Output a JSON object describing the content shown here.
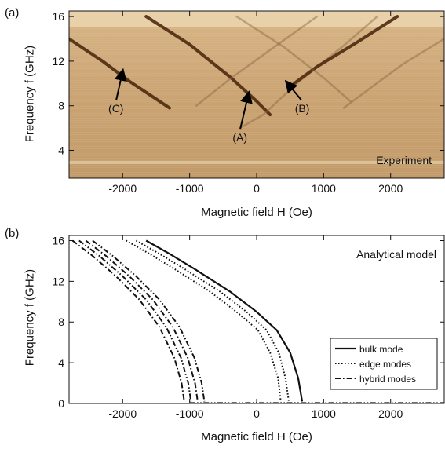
{
  "chart_data": [
    {
      "type": "heatmap",
      "panel_label": "(a)",
      "xlabel": "Magnetic field H (Oe)",
      "ylabel": "Frequency f (GHz)",
      "xlim": [
        -2800,
        2800
      ],
      "ylim": [
        1.5,
        16.5
      ],
      "x_ticks": [
        -2000,
        -1000,
        0,
        1000,
        2000
      ],
      "y_ticks": [
        4,
        8,
        12,
        16
      ],
      "annotation": "Experiment",
      "colormap": {
        "low": "#efd8b2",
        "mid": "#c49a6a",
        "high": "#4e2a10"
      },
      "features": [
        {
          "name": "(A)",
          "points": [
            [
              -1650,
              16.0
            ],
            [
              -1000,
              13.5
            ],
            [
              -400,
              10.6
            ],
            [
              0,
              8.4
            ],
            [
              200,
              7.2
            ]
          ]
        },
        {
          "name": "(A) mirror",
          "points": [
            [
              -250,
              6.0
            ],
            [
              100,
              7.2
            ],
            [
              600,
              10.0
            ],
            [
              1300,
              13.4
            ],
            [
              1800,
              16.0
            ]
          ]
        },
        {
          "name": "(B)",
          "points": [
            [
              560,
              10.0
            ],
            [
              900,
              11.5
            ],
            [
              1500,
              13.7
            ],
            [
              2100,
              16.0
            ]
          ]
        },
        {
          "name": "(C)",
          "points": [
            [
              -2800,
              14.0
            ],
            [
              -2300,
              12.0
            ],
            [
              -1900,
              10.2
            ],
            [
              -1500,
              8.6
            ],
            [
              -1300,
              7.8
            ]
          ]
        },
        {
          "name": "(C) mirror",
          "points": [
            [
              1300,
              7.8
            ],
            [
              1700,
              9.6
            ],
            [
              2200,
              11.8
            ],
            [
              2800,
              14.0
            ]
          ]
        },
        {
          "name": "faint",
          "points": [
            [
              -900,
              8.0
            ],
            [
              -400,
              10.4
            ],
            [
              200,
              13.0
            ],
            [
              900,
              16.0
            ]
          ]
        },
        {
          "name": "faint mirror",
          "points": [
            [
              -300,
              16.0
            ],
            [
              400,
              13.3
            ],
            [
              1000,
              10.5
            ],
            [
              1400,
              8.4
            ]
          ]
        }
      ],
      "annotations": [
        {
          "text": "(A)",
          "label_at": [
            -250,
            4.8
          ],
          "arrow_to": [
            -120,
            9.1
          ]
        },
        {
          "text": "(B)",
          "label_at": [
            680,
            7.4
          ],
          "arrow_to": [
            450,
            10.1
          ]
        },
        {
          "text": "(C)",
          "label_at": [
            -2100,
            7.4
          ],
          "arrow_to": [
            -2000,
            11.1
          ]
        }
      ]
    },
    {
      "type": "line",
      "panel_label": "(b)",
      "xlabel": "Magnetic field H (Oe)",
      "ylabel": "Frequency f (GHz)",
      "xlim": [
        -2800,
        2800
      ],
      "ylim": [
        0,
        16.5
      ],
      "x_ticks": [
        -2000,
        -1000,
        0,
        1000,
        2000
      ],
      "y_ticks": [
        0,
        4,
        8,
        12,
        16
      ],
      "annotation": "Analytical model",
      "legend_position": "bottom-right",
      "series": [
        {
          "name": "bulk mode",
          "style": "solid",
          "points": [
            [
              -1650,
              16
            ],
            [
              -1300,
              14.7
            ],
            [
              -900,
              13.1
            ],
            [
              -400,
              11.0
            ],
            [
              0,
              9.0
            ],
            [
              300,
              7.2
            ],
            [
              500,
              5.0
            ],
            [
              620,
              2.5
            ],
            [
              680,
              0.2
            ]
          ]
        },
        {
          "style": "dotted",
          "points": [
            [
              -1800,
              16
            ],
            [
              -1450,
              14.7
            ],
            [
              -1050,
              13.1
            ],
            [
              -550,
              11.0
            ],
            [
              -150,
              9.0
            ],
            [
              150,
              7.2
            ],
            [
              330,
              5.0
            ],
            [
              430,
              2.5
            ],
            [
              480,
              0.2
            ]
          ]
        },
        {
          "name": "edge modes",
          "style": "dotted",
          "points": [
            [
              -1950,
              16
            ],
            [
              -1600,
              14.7
            ],
            [
              -1200,
              13.1
            ],
            [
              -700,
              11.0
            ],
            [
              -300,
              9.0
            ],
            [
              20,
              7.2
            ],
            [
              200,
              5.0
            ],
            [
              320,
              2.5
            ],
            [
              360,
              0.2
            ]
          ]
        },
        {
          "style": "dash-dot-dot",
          "points": [
            [
              -2450,
              16
            ],
            [
              -2150,
              14.5
            ],
            [
              -1800,
              12.5
            ],
            [
              -1450,
              10.2
            ],
            [
              -1150,
              7.5
            ],
            [
              -930,
              4.5
            ],
            [
              -820,
              2.0
            ],
            [
              -780,
              0.2
            ]
          ]
        },
        {
          "name": "hybrid modes",
          "style": "dash-dot",
          "points": [
            [
              -2550,
              16
            ],
            [
              -2250,
              14.5
            ],
            [
              -1900,
              12.5
            ],
            [
              -1550,
              10.2
            ],
            [
              -1250,
              7.5
            ],
            [
              -1030,
              4.5
            ],
            [
              -920,
              2.0
            ],
            [
              -880,
              0.2
            ]
          ]
        },
        {
          "style": "dash-dot-dot",
          "points": [
            [
              -2650,
              16
            ],
            [
              -2350,
              14.5
            ],
            [
              -2000,
              12.5
            ],
            [
              -1650,
              10.2
            ],
            [
              -1350,
              7.5
            ],
            [
              -1130,
              4.5
            ],
            [
              -1020,
              2.0
            ],
            [
              -980,
              0.2
            ]
          ]
        },
        {
          "style": "dash-dot",
          "points": [
            [
              -2750,
              16
            ],
            [
              -2450,
              14.5
            ],
            [
              -2100,
              12.5
            ],
            [
              -1750,
              10.2
            ],
            [
              -1450,
              7.5
            ],
            [
              -1230,
              4.5
            ],
            [
              -1120,
              2.0
            ],
            [
              -1080,
              0.2
            ]
          ]
        },
        {
          "style": "dash-dot-dot",
          "points": [
            [
              -1000,
              0.05
            ],
            [
              2800,
              0.05
            ]
          ]
        }
      ]
    }
  ]
}
